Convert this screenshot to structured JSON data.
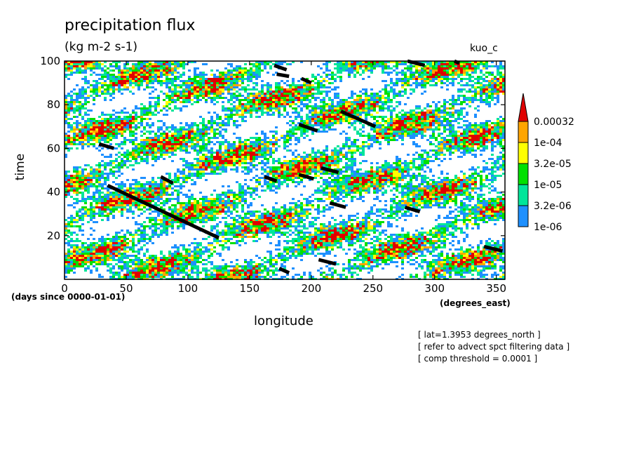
{
  "chart_data": {
    "type": "heatmap",
    "title": "precipitation flux",
    "units": "(kg m-2 s-1)",
    "experiment": "kuo_c",
    "xlabel": "longitude",
    "ylabel": "time",
    "x_units": "(degrees_east)",
    "y_units": "(days since 0000-01-01)",
    "xlim": [
      0,
      357
    ],
    "ylim": [
      0,
      100
    ],
    "x_ticks": [
      0,
      50,
      100,
      150,
      200,
      250,
      300,
      350
    ],
    "y_ticks": [
      20,
      40,
      60,
      80,
      100
    ],
    "colorbar": {
      "levels": [
        "1e-06",
        "3.2e-06",
        "1e-05",
        "3.2e-05",
        "1e-04",
        "0.00032"
      ],
      "colors": [
        "#1e90ff",
        "#00e59a",
        "#00e000",
        "#ffff00",
        "#ffa500",
        "#e00000"
      ],
      "extend": "max"
    },
    "overlay_segments": [
      {
        "x": [
          35,
          125
        ],
        "y": [
          43,
          19
        ]
      },
      {
        "x": [
          28,
          40
        ],
        "y": [
          62,
          60
        ]
      },
      {
        "x": [
          78,
          88
        ],
        "y": [
          47,
          44
        ]
      },
      {
        "x": [
          162,
          172
        ],
        "y": [
          47,
          45
        ]
      },
      {
        "x": [
          190,
          202
        ],
        "y": [
          48,
          46
        ]
      },
      {
        "x": [
          208,
          222
        ],
        "y": [
          51,
          49
        ]
      },
      {
        "x": [
          190,
          205
        ],
        "y": [
          71,
          68
        ]
      },
      {
        "x": [
          224,
          252
        ],
        "y": [
          77,
          70
        ]
      },
      {
        "x": [
          170,
          180
        ],
        "y": [
          98,
          96
        ]
      },
      {
        "x": [
          172,
          182
        ],
        "y": [
          94,
          93
        ]
      },
      {
        "x": [
          192,
          200
        ],
        "y": [
          92,
          90
        ]
      },
      {
        "x": [
          215,
          228
        ],
        "y": [
          35,
          33
        ]
      },
      {
        "x": [
          276,
          288
        ],
        "y": [
          33,
          31
        ]
      },
      {
        "x": [
          340,
          355
        ],
        "y": [
          15,
          13
        ]
      },
      {
        "x": [
          174,
          182
        ],
        "y": [
          5,
          3
        ]
      },
      {
        "x": [
          206,
          220
        ],
        "y": [
          9,
          7
        ]
      },
      {
        "x": [
          278,
          292
        ],
        "y": [
          100,
          98
        ]
      },
      {
        "x": [
          316,
          320
        ],
        "y": [
          100,
          99
        ]
      }
    ],
    "notes": [
      "[ lat=1.3953 degrees_north ]",
      "[ refer to advect spct filtering data ]",
      "[ comp threshold = 0.0001 ]"
    ]
  }
}
